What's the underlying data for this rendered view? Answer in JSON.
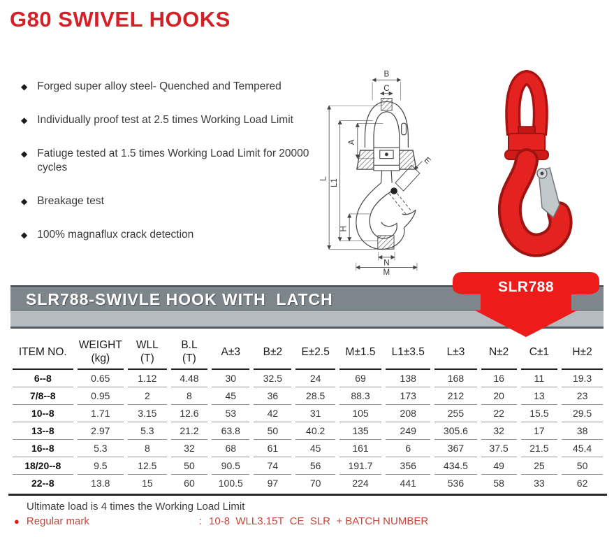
{
  "title": "G80 SWIVEL HOOKS",
  "features": {
    "bullet": "◆",
    "items": [
      "Forged super alloy steel- Quenched and Tempered",
      "Individually proof test at 2.5 times Working Load Limit",
      "Fatiuge tested at 1.5 times Working Load Limit for 20000 cycles",
      "Breakage test",
      "100% magnaflux crack detection"
    ]
  },
  "diagram": {
    "labels": {
      "b": "B",
      "c": "C",
      "a": "A",
      "l": "L",
      "l1": "L1",
      "h": "H",
      "n": "N",
      "m": "M",
      "e": "E"
    }
  },
  "banner": {
    "heading": "SLR788-SWIVLE HOOK WITH  LATCH",
    "tag_label": "SLR788"
  },
  "colors": {
    "title_red": "#d32127",
    "arrow_red": "#ee1b1b",
    "banner_dark": "#7d868b",
    "banner_light": "#b5bbbe",
    "footer_red": "#c1473b"
  },
  "table": {
    "headers": [
      {
        "l1": "ITEM NO.",
        "l2": ""
      },
      {
        "l1": "WEIGHT",
        "l2": "(kg)"
      },
      {
        "l1": "WLL",
        "l2": "(T)"
      },
      {
        "l1": "B.L",
        "l2": "(T)"
      },
      {
        "l1": "A±3",
        "l2": ""
      },
      {
        "l1": "B±2",
        "l2": ""
      },
      {
        "l1": "E±2.5",
        "l2": ""
      },
      {
        "l1": "M±1.5",
        "l2": ""
      },
      {
        "l1": "L1±3.5",
        "l2": ""
      },
      {
        "l1": "L±3",
        "l2": ""
      },
      {
        "l1": "N±2",
        "l2": ""
      },
      {
        "l1": "C±1",
        "l2": ""
      },
      {
        "l1": "H±2",
        "l2": ""
      }
    ],
    "rows": [
      [
        "6--8",
        "0.65",
        "1.12",
        "4.48",
        "30",
        "32.5",
        "24",
        "69",
        "138",
        "168",
        "16",
        "11",
        "19.3"
      ],
      [
        "7/8--8",
        "0.95",
        "2",
        "8",
        "45",
        "36",
        "28.5",
        "88.3",
        "173",
        "212",
        "20",
        "13",
        "23"
      ],
      [
        "10--8",
        "1.71",
        "3.15",
        "12.6",
        "53",
        "42",
        "31",
        "105",
        "208",
        "255",
        "22",
        "15.5",
        "29.5"
      ],
      [
        "13--8",
        "2.97",
        "5.3",
        "21.2",
        "63.8",
        "50",
        "40.2",
        "135",
        "249",
        "305.6",
        "32",
        "17",
        "38"
      ],
      [
        "16--8",
        "5.3",
        "8",
        "32",
        "68",
        "61",
        "45",
        "161",
        "6",
        "367",
        "37.5",
        "21.5",
        "45.4"
      ],
      [
        "18/20--8",
        "9.5",
        "12.5",
        "50",
        "90.5",
        "74",
        "56",
        "191.7",
        "356",
        "434.5",
        "49",
        "25",
        "50"
      ],
      [
        "22--8",
        "13.8",
        "15",
        "60",
        "100.5",
        "97",
        "70",
        "224",
        "441",
        "536",
        "58",
        "33",
        "62"
      ]
    ]
  },
  "footer": {
    "note": "Ultimate load is 4 times the Working Load Limit",
    "mark_bullet": "●",
    "mark_label": "Regular mark",
    "mark_separator": ":",
    "mark_value": "10-8  WLL3.15T  CE  SLR  + BATCH NUMBER"
  }
}
